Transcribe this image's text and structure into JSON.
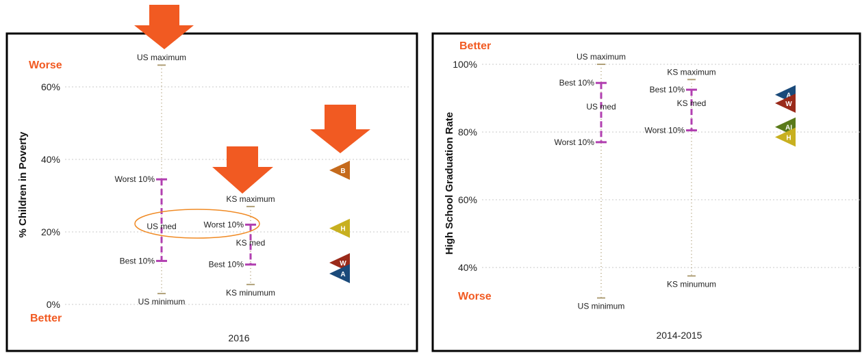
{
  "colors": {
    "accent_orange": "#f15a22",
    "range_line": "#b0a078",
    "percentile_magenta": "#b13fb0",
    "panel_border": "#000000",
    "grid": "#c8c8c8",
    "text": "#222222",
    "ellipse": "#f08a24"
  },
  "chart_data": [
    {
      "type": "range-marker",
      "ylabel": "% Children in Poverty",
      "better_label": "Better",
      "worse_label": "Worse",
      "ylim": [
        0,
        66
      ],
      "yticks": [
        0,
        20,
        40,
        60
      ],
      "ytick_labels": [
        "0%",
        "20%",
        "40%",
        "60%"
      ],
      "xlabel": "2016",
      "us": {
        "max": 66.0,
        "max_label": "US maximum",
        "min": 3.0,
        "min_label": "US minimum",
        "worst10": 34.5,
        "worst10_label": "Worst 10%",
        "best10": 12.0,
        "best10_label": "Best 10%",
        "median": 21.5,
        "median_label": "US med"
      },
      "ks": {
        "max": 27.0,
        "max_label": "KS maximum",
        "min": 5.5,
        "min_label": "KS minumum",
        "worst10": 22.0,
        "worst10_label": "Worst 10%",
        "best10": 11.0,
        "best10_label": "Best 10%",
        "median": 17.0,
        "median_label": "KS med"
      },
      "groups": [
        {
          "label": "B",
          "value": 37.0,
          "color": "#c56a1c"
        },
        {
          "label": "H",
          "value": 21.0,
          "color": "#c8b020"
        },
        {
          "label": "W",
          "value": 11.5,
          "color": "#9a2a1a"
        },
        {
          "label": "A",
          "value": 8.5,
          "color": "#1a4a7a"
        }
      ]
    },
    {
      "type": "range-marker",
      "ylabel": "High School Graduation Rate",
      "better_label": "Better",
      "worse_label": "Worse",
      "ylim": [
        31,
        100
      ],
      "yticks": [
        40,
        60,
        80,
        100
      ],
      "ytick_labels": [
        "40%",
        "60%",
        "80%",
        "100%"
      ],
      "xlabel": "2014-2015",
      "us": {
        "max": 100.0,
        "max_label": "US maximum",
        "min": 31.0,
        "min_label": "US minimum",
        "worst10": 77.0,
        "worst10_label": "Worst 10%",
        "best10": 94.5,
        "best10_label": "Best 10%",
        "median": 87.5,
        "median_label": "US med"
      },
      "ks": {
        "max": 95.5,
        "max_label": "KS maximum",
        "min": 37.5,
        "min_label": "KS minumum",
        "worst10": 80.5,
        "worst10_label": "Worst 10%",
        "best10": 92.5,
        "best10_label": "Best 10%",
        "median": 88.5,
        "median_label": "KS med"
      },
      "groups": [
        {
          "label": "A",
          "value": 91.0,
          "color": "#1a4a7a"
        },
        {
          "label": "W",
          "value": 88.5,
          "color": "#9a2a1a"
        },
        {
          "label": "AI",
          "value": 81.5,
          "color": "#5a7a1a"
        },
        {
          "label": "H",
          "value": 78.5,
          "color": "#c8b020"
        }
      ]
    }
  ]
}
